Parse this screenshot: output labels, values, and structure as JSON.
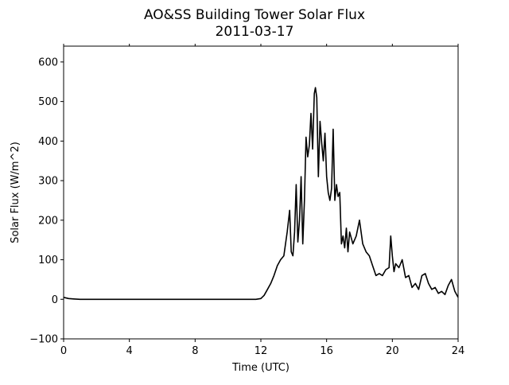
{
  "chart_data": {
    "type": "line",
    "title": "AO&SS Building Tower Solar Flux",
    "subtitle": "2011-03-17",
    "xlabel": "Time (UTC)",
    "ylabel": "Solar Flux (W/m^2)",
    "xlim": [
      0,
      24
    ],
    "ylim": [
      -100,
      640
    ],
    "xticks": [
      0,
      4,
      8,
      12,
      16,
      20,
      24
    ],
    "yticks": [
      -100,
      0,
      100,
      200,
      300,
      400,
      500,
      600
    ],
    "grid": false,
    "line_color": "#000000",
    "series": [
      {
        "x": [
          0,
          0.3,
          0.6,
          1,
          11.7,
          12.0,
          12.2,
          12.4,
          12.6,
          12.8,
          13.0,
          13.2,
          13.4,
          13.6,
          13.75,
          13.85,
          13.95,
          14.05,
          14.15,
          14.25,
          14.35,
          14.45,
          14.55,
          14.65,
          14.75,
          14.85,
          14.95,
          15.05,
          15.15,
          15.25,
          15.32,
          15.4,
          15.5,
          15.6,
          15.7,
          15.8,
          15.9,
          16.0,
          16.1,
          16.2,
          16.3,
          16.4,
          16.5,
          16.6,
          16.7,
          16.8,
          16.9,
          17.0,
          17.1,
          17.2,
          17.3,
          17.4,
          17.6,
          17.8,
          18.0,
          18.2,
          18.4,
          18.6,
          18.8,
          19.0,
          19.2,
          19.4,
          19.6,
          19.8,
          19.9,
          20.0,
          20.1,
          20.2,
          20.4,
          20.6,
          20.8,
          21.0,
          21.2,
          21.4,
          21.6,
          21.8,
          22.0,
          22.2,
          22.4,
          22.6,
          22.8,
          23.0,
          23.2,
          23.4,
          23.6,
          23.8,
          24.0
        ],
        "y": [
          5,
          2,
          1,
          0,
          0,
          2,
          10,
          25,
          40,
          60,
          85,
          100,
          110,
          170,
          225,
          120,
          110,
          170,
          290,
          145,
          200,
          310,
          140,
          250,
          410,
          360,
          390,
          470,
          380,
          520,
          535,
          510,
          310,
          450,
          395,
          350,
          420,
          310,
          270,
          250,
          280,
          430,
          250,
          290,
          260,
          270,
          140,
          160,
          130,
          180,
          120,
          170,
          140,
          160,
          200,
          140,
          120,
          110,
          85,
          60,
          65,
          60,
          75,
          80,
          160,
          110,
          70,
          90,
          80,
          100,
          55,
          60,
          30,
          40,
          25,
          60,
          65,
          40,
          25,
          30,
          15,
          20,
          12,
          35,
          50,
          20,
          5
        ]
      }
    ]
  }
}
